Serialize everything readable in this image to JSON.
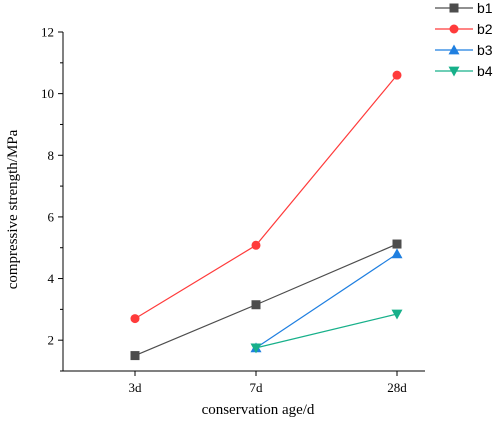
{
  "chart_data": {
    "type": "line",
    "title": "",
    "xlabel": "conservation age/d",
    "ylabel": "compressive strength/MPa",
    "categories": [
      "3d",
      "7d",
      "28d"
    ],
    "ylim": [
      1,
      12
    ],
    "yticks": [
      2,
      4,
      6,
      8,
      10,
      12
    ],
    "grid": false,
    "legend_position": "top-right",
    "series": [
      {
        "name": "b1",
        "color": "#4d4d4d",
        "marker": "square",
        "values": [
          1.5,
          3.15,
          5.12
        ]
      },
      {
        "name": "b2",
        "color": "#ff3b3b",
        "marker": "circle",
        "values": [
          2.7,
          5.08,
          10.6
        ]
      },
      {
        "name": "b3",
        "color": "#1f7fe0",
        "marker": "triangle-up",
        "values": [
          null,
          1.75,
          4.8
        ]
      },
      {
        "name": "b4",
        "color": "#17b08a",
        "marker": "triangle-down",
        "values": [
          null,
          1.75,
          2.85
        ]
      }
    ]
  }
}
